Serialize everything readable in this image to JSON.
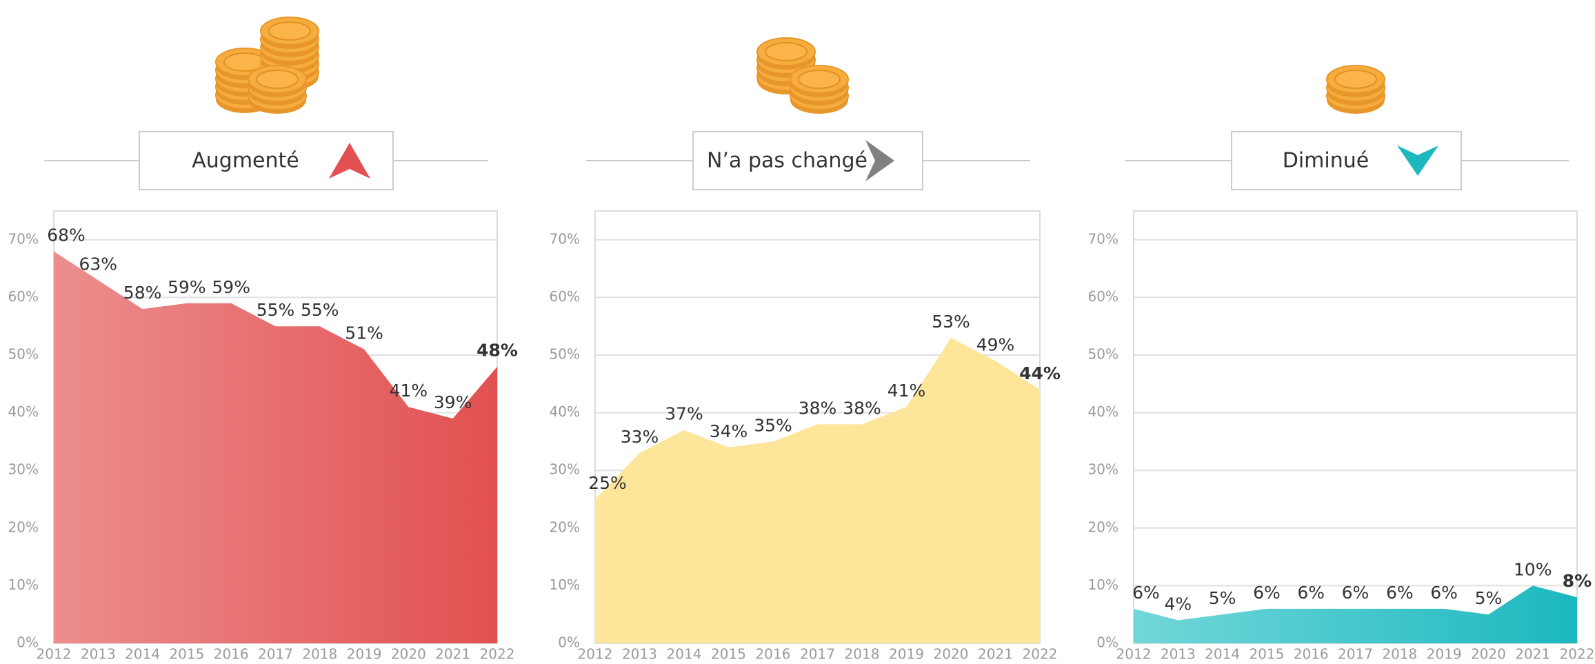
{
  "chart_data": [
    {
      "type": "area",
      "title": "Augmenté",
      "categories": [
        "2012",
        "2013",
        "2014",
        "2015",
        "2016",
        "2017",
        "2018",
        "2019",
        "2020",
        "2021",
        "2022"
      ],
      "values": [
        68,
        63,
        58,
        59,
        59,
        55,
        55,
        51,
        41,
        39,
        48
      ],
      "value_labels": [
        "68%",
        "63%",
        "58%",
        "59%",
        "59%",
        "55%",
        "55%",
        "51%",
        "41%",
        "39%",
        "48%"
      ],
      "color": "#e25050",
      "color_light": "#ec8e8e",
      "label_color": "#e24a4a",
      "ylim": [
        0,
        75
      ],
      "yticks": [
        {
          "value": 0,
          "label": "0%"
        },
        {
          "value": 10,
          "label": "10%"
        },
        {
          "value": 20,
          "label": "20%"
        },
        {
          "value": 30,
          "label": "30%"
        },
        {
          "value": 40,
          "label": "40%"
        },
        {
          "value": 50,
          "label": "50%"
        },
        {
          "value": 60,
          "label": "60%"
        },
        {
          "value": 70,
          "label": "70%"
        }
      ],
      "grid": true
    },
    {
      "type": "area",
      "title": "N’a pas changé",
      "categories": [
        "2012",
        "2013",
        "2014",
        "2015",
        "2016",
        "2017",
        "2018",
        "2019",
        "2020",
        "2021",
        "2022"
      ],
      "values": [
        25,
        33,
        37,
        34,
        35,
        38,
        38,
        41,
        53,
        49,
        44
      ],
      "value_labels": [
        "25%",
        "33%",
        "37%",
        "34%",
        "35%",
        "38%",
        "38%",
        "41%",
        "53%",
        "49%",
        "44%"
      ],
      "color": "#fde59a",
      "color_light": "#fde59a",
      "label_color": "#c7960a",
      "ylim": [
        0,
        75
      ],
      "yticks": [
        {
          "value": 0,
          "label": "0%"
        },
        {
          "value": 10,
          "label": "10%"
        },
        {
          "value": 20,
          "label": "20%"
        },
        {
          "value": 30,
          "label": "30%"
        },
        {
          "value": 40,
          "label": "40%"
        },
        {
          "value": 50,
          "label": "50%"
        },
        {
          "value": 60,
          "label": "60%"
        },
        {
          "value": 70,
          "label": "70%"
        }
      ],
      "grid": true
    },
    {
      "type": "area",
      "title": "Diminué",
      "categories": [
        "2012",
        "2013",
        "2014",
        "2015",
        "2016",
        "2017",
        "2018",
        "2019",
        "2020",
        "2021",
        "2022"
      ],
      "values": [
        6,
        4,
        5,
        6,
        6,
        6,
        6,
        6,
        5,
        10,
        8
      ],
      "value_labels": [
        "6%",
        "4%",
        "5%",
        "6%",
        "6%",
        "6%",
        "6%",
        "6%",
        "5%",
        "10%",
        "8%"
      ],
      "color": "#1bb8bf",
      "color_light": "#72d7d9",
      "label_color": "#1aaeb5",
      "ylim": [
        0,
        75
      ],
      "yticks": [
        {
          "value": 0,
          "label": "0%"
        },
        {
          "value": 10,
          "label": "10%"
        },
        {
          "value": 20,
          "label": "20%"
        },
        {
          "value": 30,
          "label": "30%"
        },
        {
          "value": 40,
          "label": "40%"
        },
        {
          "value": 50,
          "label": "50%"
        },
        {
          "value": 60,
          "label": "60%"
        },
        {
          "value": 70,
          "label": "70%"
        }
      ],
      "grid": true
    }
  ]
}
